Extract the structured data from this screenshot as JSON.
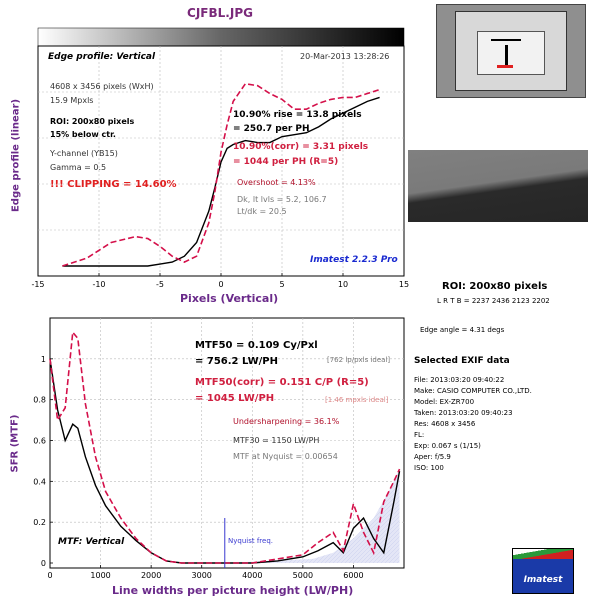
{
  "header": {
    "filename": "CJFBL.JPG"
  },
  "chart_data": [
    {
      "type": "line",
      "title": "Edge profile: Vertical",
      "timestamp": "20-Mar-2013 13:28:26",
      "xlabel": "Pixels (Vertical)",
      "ylabel": "Edge profile (linear)",
      "xlim": [
        -15,
        15
      ],
      "ylim": [
        0,
        1
      ],
      "xticks": [
        "-15",
        "-10",
        "-5",
        "0",
        "5",
        "10",
        "15"
      ],
      "grid": true,
      "series": [
        {
          "values_x": [
            -13,
            -11,
            -9,
            -7,
            -6,
            -5,
            -4,
            -3,
            -2,
            -1,
            -0.5,
            0,
            0.5,
            1,
            1.5,
            2,
            3,
            4,
            5,
            6,
            7,
            8,
            9,
            10,
            11,
            12,
            13
          ],
          "values_y": [
            0.0,
            0.0,
            0.0,
            0.0,
            0.0,
            0.01,
            0.02,
            0.05,
            0.12,
            0.28,
            0.4,
            0.53,
            0.6,
            0.62,
            0.63,
            0.64,
            0.63,
            0.63,
            0.66,
            0.67,
            0.68,
            0.71,
            0.75,
            0.78,
            0.81,
            0.84,
            0.86
          ],
          "style": "solid-black"
        },
        {
          "values_x": [
            -13,
            -11,
            -9,
            -7,
            -6,
            -5,
            -4,
            -3,
            -2,
            -1,
            -0.5,
            0,
            0.5,
            1,
            2,
            3,
            4,
            5,
            6,
            7,
            8,
            9,
            10,
            11,
            12,
            13
          ],
          "values_y": [
            0.0,
            0.04,
            0.12,
            0.15,
            0.14,
            0.1,
            0.05,
            0.02,
            0.05,
            0.22,
            0.38,
            0.58,
            0.72,
            0.84,
            0.93,
            0.92,
            0.88,
            0.85,
            0.8,
            0.8,
            0.83,
            0.85,
            0.86,
            0.86,
            0.88,
            0.9
          ],
          "style": "dashed-red"
        }
      ],
      "info": {
        "dimensions": "4608 x 3456 pixels (WxH)",
        "mpxls": "15.9 Mpxls",
        "roi": "ROI: 200x80 pixels",
        "below": "15% below ctr.",
        "channel": "Y-channel  (YB15)",
        "gamma": "Gamma = 0.5",
        "clipping": "!!! CLIPPING =  14.60%",
        "rise1": "10.90% rise = 13.8 pixels",
        "rise2": "= 250.7 per PH",
        "corr1": "10.90%(corr) = 3.31 pixels",
        "corr2": "= 1044 per PH  (R=5)",
        "overshoot": "Overshoot = 4.13%",
        "dk": "Dk, lt lvls = 5.2, 106.7",
        "lt": "Lt/dk = 20.5",
        "brand": "Imatest 2.2.3 Pro"
      }
    },
    {
      "type": "line",
      "title": "MTF: Vertical",
      "xlabel": "Line widths per picture height (LW/PH)",
      "ylabel": "SFR (MTF)",
      "xlim": [
        0,
        7000
      ],
      "ylim": [
        0,
        1.2
      ],
      "xticks": [
        "0",
        "1000",
        "2000",
        "3000",
        "4000",
        "5000",
        "6000"
      ],
      "yticks": [
        "0",
        "0.2",
        "0.4",
        "0.6",
        "0.8",
        "1"
      ],
      "grid": true,
      "series": [
        {
          "values_x": [
            0,
            150,
            300,
            450,
            550,
            700,
            900,
            1100,
            1400,
            1700,
            2000,
            2300,
            2600,
            3000,
            3500,
            4000,
            4500,
            5000,
            5300,
            5600,
            5800,
            6000,
            6200,
            6400,
            6600,
            6800,
            6912
          ],
          "values_y": [
            1.0,
            0.75,
            0.6,
            0.68,
            0.66,
            0.52,
            0.38,
            0.28,
            0.18,
            0.11,
            0.05,
            0.01,
            0.0,
            0.0,
            0.0,
            0.0,
            0.01,
            0.03,
            0.06,
            0.1,
            0.05,
            0.17,
            0.22,
            0.12,
            0.05,
            0.3,
            0.45
          ],
          "style": "solid-black"
        },
        {
          "values_x": [
            0,
            150,
            300,
            450,
            550,
            700,
            900,
            1100,
            1400,
            1700,
            2000,
            2300,
            2600,
            3000,
            3500,
            4000,
            4500,
            5000,
            5300,
            5600,
            5800,
            6000,
            6200,
            6400,
            6600,
            6800,
            6912
          ],
          "values_y": [
            1.0,
            0.7,
            0.76,
            1.13,
            1.1,
            0.78,
            0.52,
            0.35,
            0.22,
            0.12,
            0.05,
            0.01,
            0.0,
            0.0,
            0.0,
            0.0,
            0.02,
            0.04,
            0.1,
            0.15,
            0.06,
            0.29,
            0.15,
            0.05,
            0.3,
            0.4,
            0.46
          ],
          "style": "dashed-red"
        }
      ],
      "info": {
        "mtf50": "MTF50 = 0.109 Cy/Pxl",
        "lwph": "= 756.2 LW/PH",
        "ideal1": "[762 lp/pxls ideal]",
        "mtf50corr": "MTF50(corr) = 0.151 C/P  (R=5)",
        "lwph2": "= 1045 LW/PH",
        "ideal2": "[1.46 mpxls ideal]",
        "undersharp": "Undersharpening = 36.1%",
        "mtf30": "MTF30 = 1150 LW/PH",
        "nyq": "MTF at Nyquist = 0.00654",
        "nyq_label": "Nyquist freq.",
        "nyquist_x": 3456
      }
    }
  ],
  "right_panel": {
    "roi_title": "ROI: 200x80 pixels",
    "roi_coords": "L R T B = 2237 2436  2123 2202",
    "edge_angle": "Edge angle = 4.31 degs",
    "exif_title": "Selected EXIF data",
    "exif": [
      "File:  2013:03:20 09:40:22",
      "Make:  CASIO COMPUTER CO.,LTD.",
      "Model:  EX-ZR700",
      "Taken:  2013:03:20 09:40:23",
      "Res:  4608 x 3456",
      "FL:",
      "Exp:  0.067 s  (1/15)",
      "Aper:  f/5.9",
      "ISO:  100"
    ],
    "logo_text": "Imatest"
  }
}
